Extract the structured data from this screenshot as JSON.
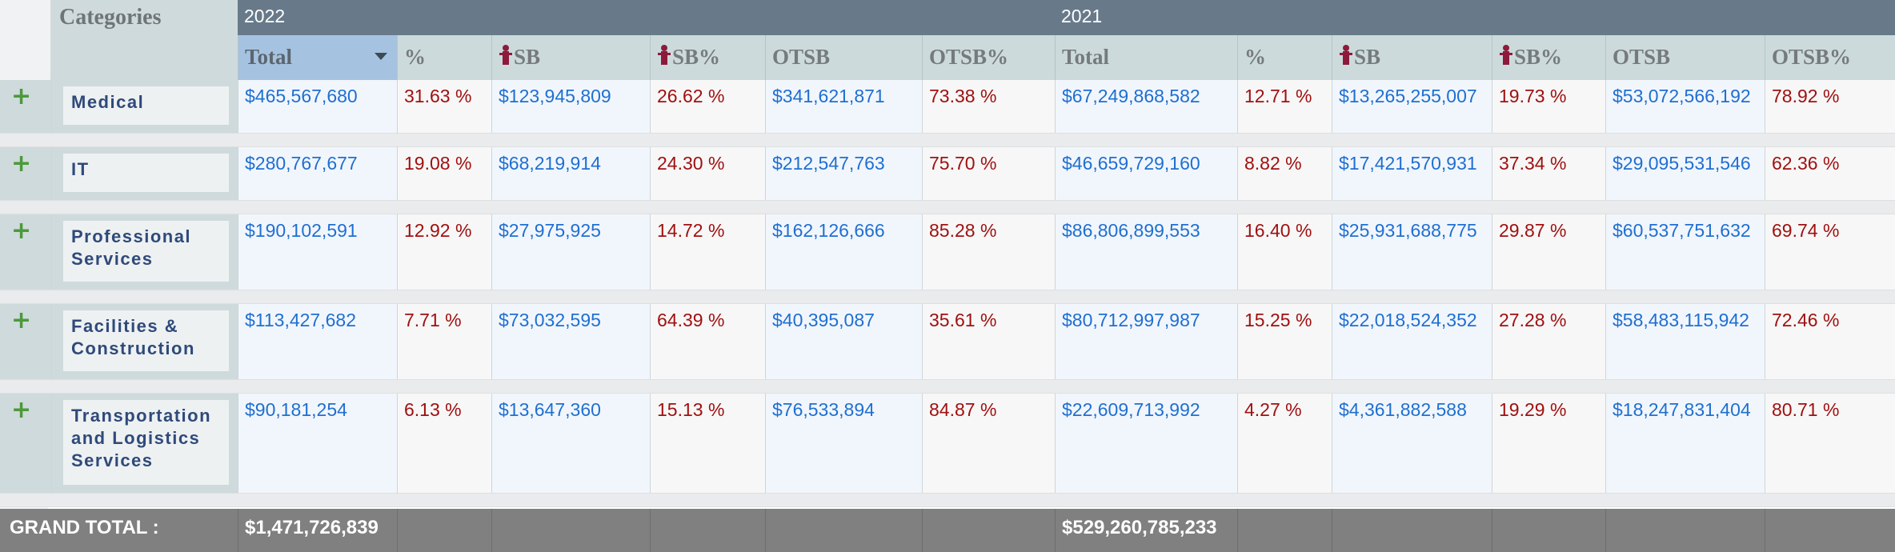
{
  "header": {
    "categories_title": "Categories",
    "years": [
      {
        "label": "2022"
      },
      {
        "label": "2021"
      }
    ],
    "columns_2022": [
      {
        "label": "Total",
        "icon": false,
        "sorted": true
      },
      {
        "label": "%",
        "icon": false
      },
      {
        "label": "SB",
        "icon": true
      },
      {
        "label": "SB%",
        "icon": true
      },
      {
        "label": "OTSB",
        "icon": false
      },
      {
        "label": "OTSB%",
        "icon": false
      }
    ],
    "columns_2021": [
      {
        "label": "Total",
        "icon": false
      },
      {
        "label": "%",
        "icon": false
      },
      {
        "label": "SB",
        "icon": true
      },
      {
        "label": "SB%",
        "icon": true
      },
      {
        "label": "OTSB",
        "icon": false
      },
      {
        "label": "OTSB%",
        "icon": false
      }
    ],
    "sb_icon": "small-business-person-icon",
    "sort_icon": "sort-descending-caret-icon"
  },
  "rows": [
    {
      "category": "Medical",
      "expand_icon": "plus-icon",
      "y2022": [
        "$465,567,680",
        "31.63 %",
        "$123,945,809",
        "26.62 %",
        "$341,621,871",
        "73.38 %"
      ],
      "y2021": [
        "$67,249,868,582",
        "12.71 %",
        "$13,265,255,007",
        "19.73 %",
        "$53,072,566,192",
        "78.92 %"
      ]
    },
    {
      "category": "IT",
      "expand_icon": "plus-icon",
      "y2022": [
        "$280,767,677",
        "19.08 %",
        "$68,219,914",
        "24.30 %",
        "$212,547,763",
        "75.70 %"
      ],
      "y2021": [
        "$46,659,729,160",
        "8.82 %",
        "$17,421,570,931",
        "37.34 %",
        "$29,095,531,546",
        "62.36 %"
      ]
    },
    {
      "category": "Professional Services",
      "expand_icon": "plus-icon",
      "y2022": [
        "$190,102,591",
        "12.92 %",
        "$27,975,925",
        "14.72 %",
        "$162,126,666",
        "85.28 %"
      ],
      "y2021": [
        "$86,806,899,553",
        "16.40 %",
        "$25,931,688,775",
        "29.87 %",
        "$60,537,751,632",
        "69.74 %"
      ]
    },
    {
      "category": "Facilities & Construction",
      "expand_icon": "plus-icon",
      "y2022": [
        "$113,427,682",
        "7.71 %",
        "$73,032,595",
        "64.39 %",
        "$40,395,087",
        "35.61 %"
      ],
      "y2021": [
        "$80,712,997,987",
        "15.25 %",
        "$22,018,524,352",
        "27.28 %",
        "$58,483,115,942",
        "72.46 %"
      ]
    },
    {
      "category": "Transportation and Logistics Services",
      "expand_icon": "plus-icon",
      "y2022": [
        "$90,181,254",
        "6.13 %",
        "$13,647,360",
        "15.13 %",
        "$76,533,894",
        "84.87 %"
      ],
      "y2021": [
        "$22,609,713,992",
        "4.27 %",
        "$4,361,882,588",
        "19.29 %",
        "$18,247,831,404",
        "80.71 %"
      ]
    }
  ],
  "grand_total": {
    "label": "GRAND TOTAL :",
    "total_2022": "$1,471,726,839",
    "total_2021": "$529,260,785,233"
  },
  "colors": {
    "year_header": "#687a8a",
    "column_header": "#ccdadc",
    "sorted_header": "#a5c3e0",
    "money_text": "#1f6fd1",
    "percent_text": "#a01010",
    "category_text": "#2f4a7a",
    "plus_icon": "#4c9a3a",
    "sb_icon": "#8c1b3b",
    "grand_total_bar": "#808080"
  }
}
